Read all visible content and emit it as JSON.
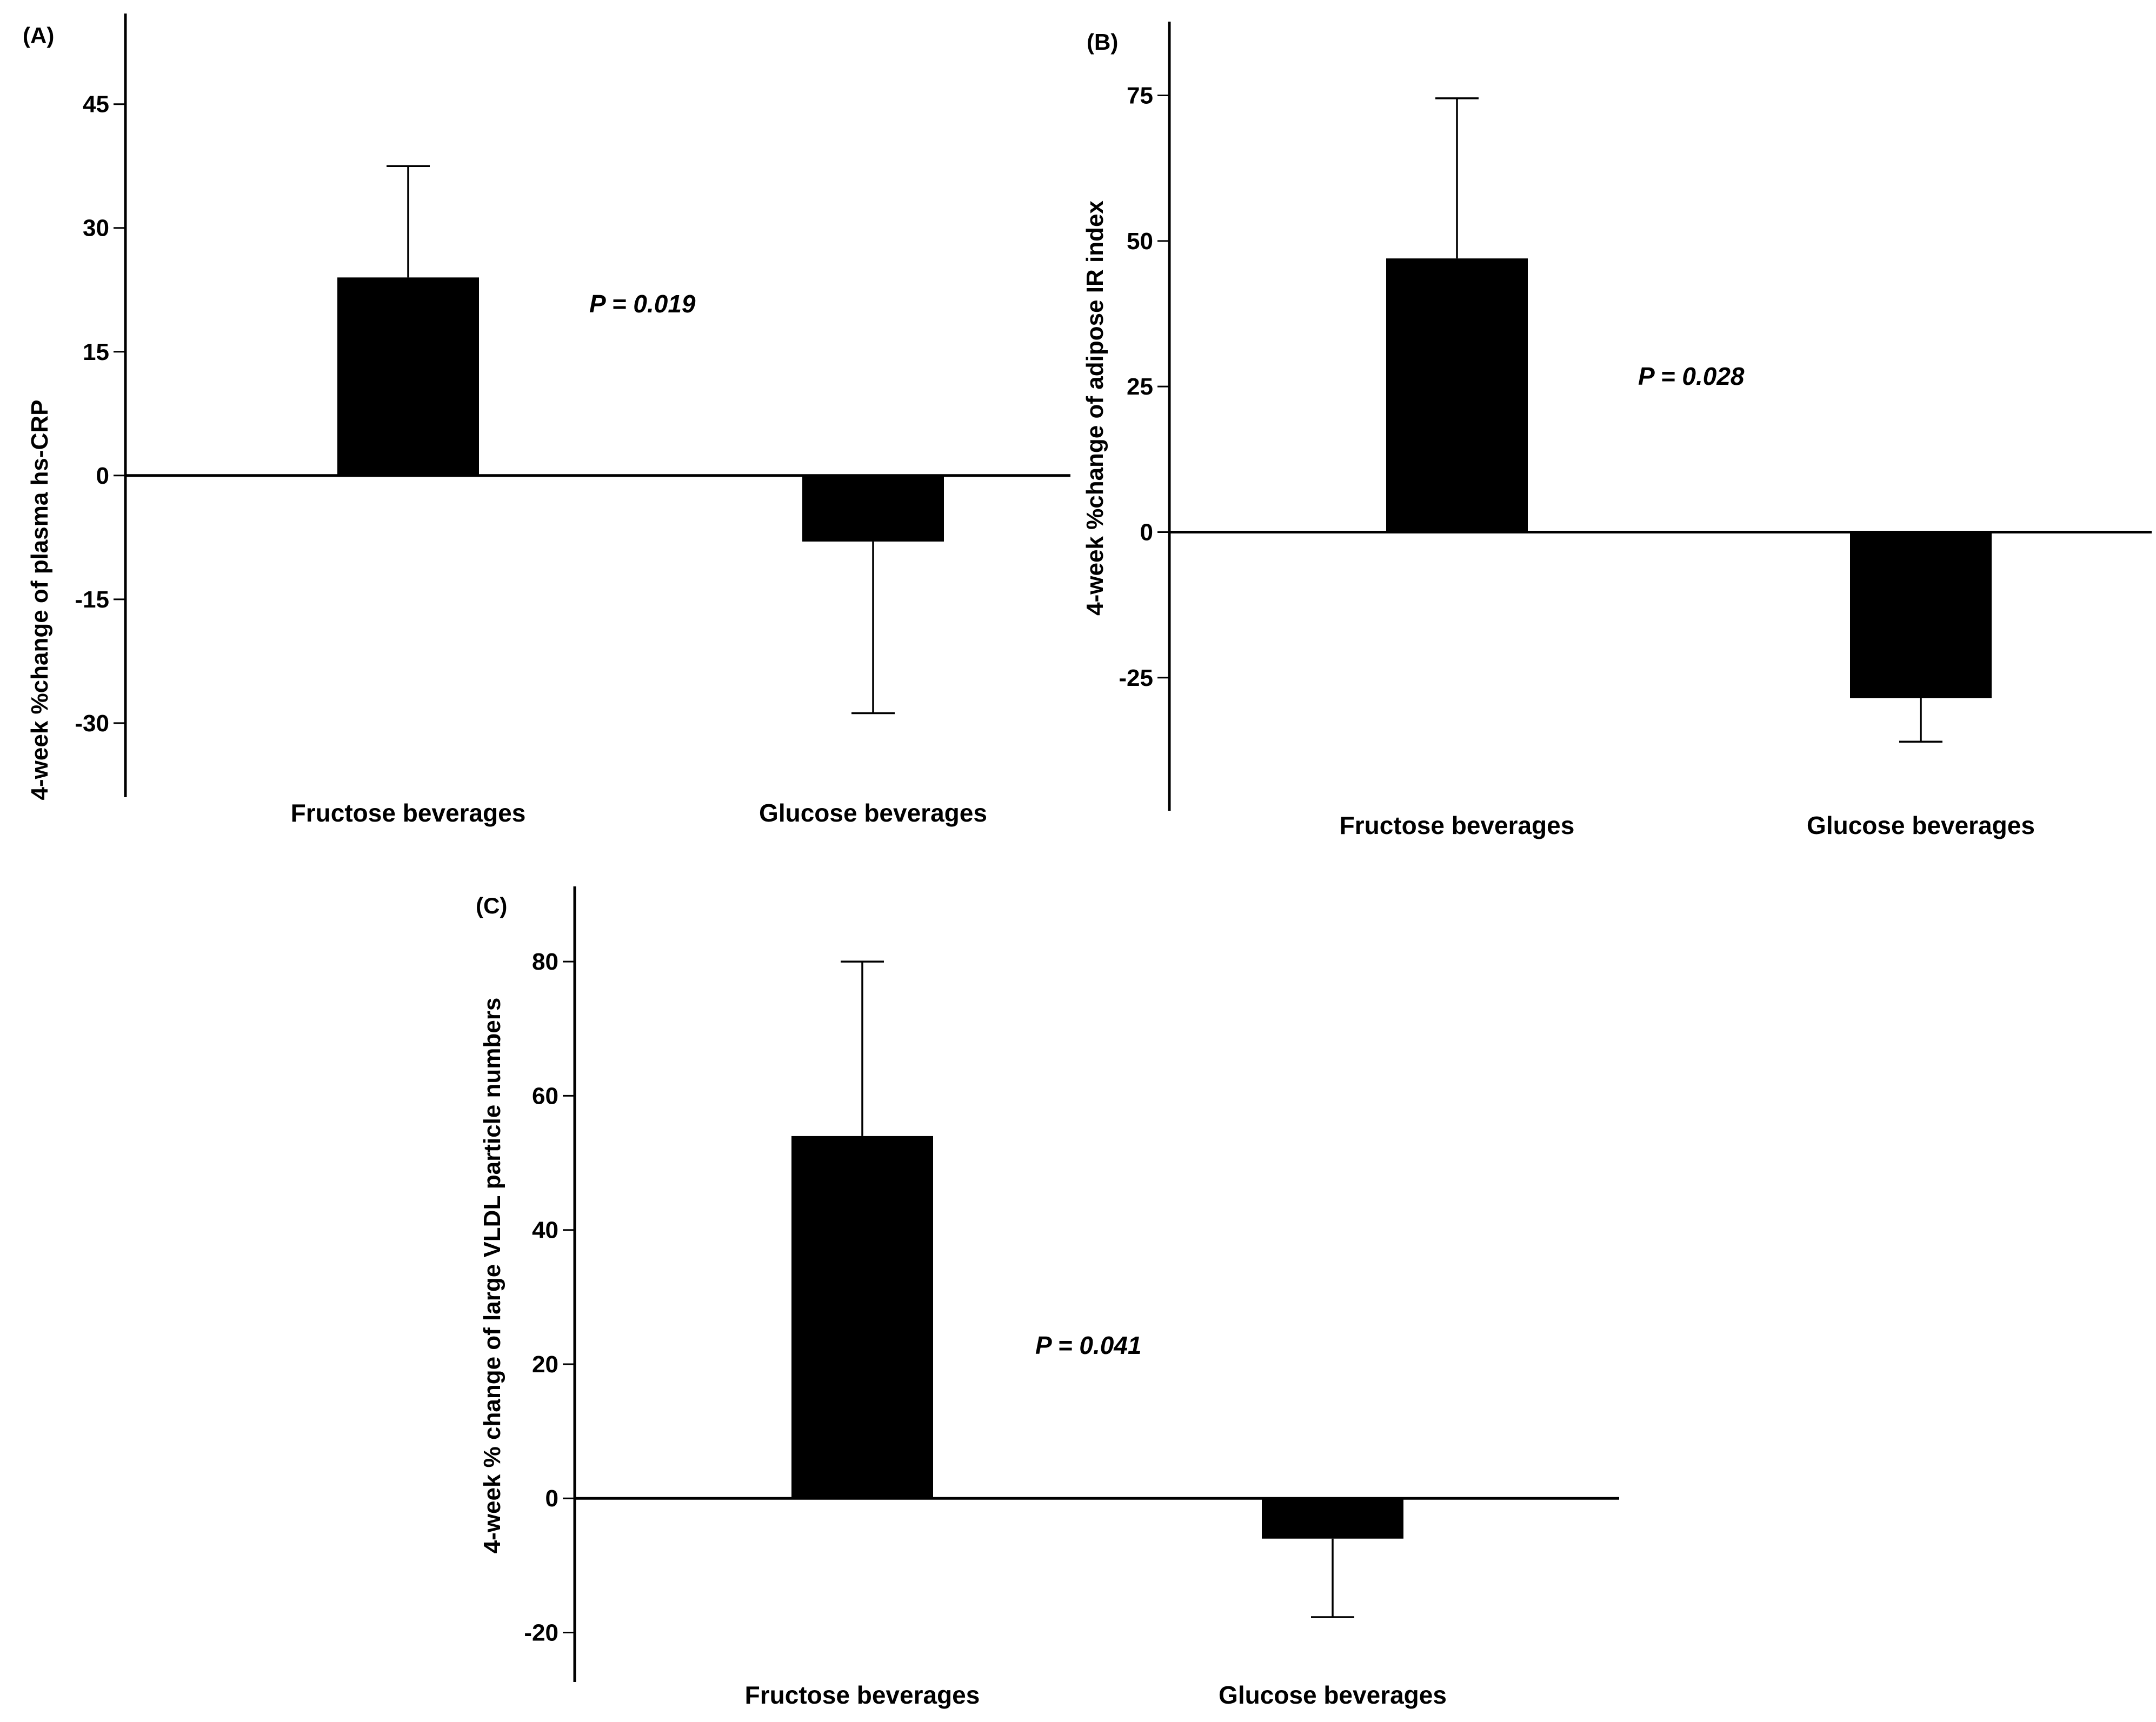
{
  "chart_data": [
    {
      "type": "bar",
      "panel_label": "(A)",
      "categories": [
        "Fructose beverages",
        "Glucose beverages"
      ],
      "values": [
        24,
        -8
      ],
      "error_bars": [
        {
          "upper": 37.5
        },
        {
          "lower": -28.8
        }
      ],
      "ylabel": "4-week %change of plasma hs-CRP",
      "ylim": [
        -38,
        55
      ],
      "yticks": [
        45,
        30,
        15,
        0,
        -15,
        -30
      ],
      "yticklabels": [
        "45",
        "30",
        "15",
        "0",
        "-15",
        "-30"
      ],
      "annotation": "P = 0.019",
      "title": "",
      "xlabel": ""
    },
    {
      "type": "bar",
      "panel_label": "(B)",
      "categories": [
        "Fructose beverages",
        "Glucose beverages"
      ],
      "values": [
        47,
        -28.5
      ],
      "error_bars": [
        {
          "upper": 74.5
        },
        {
          "lower": -36
        }
      ],
      "ylabel": "4-week %change of adipose IR index",
      "ylim": [
        -46,
        86
      ],
      "yticks": [
        75,
        50,
        25,
        0,
        -25
      ],
      "yticklabels": [
        "75",
        "50",
        "25",
        "0",
        "-25"
      ],
      "annotation": "P = 0.028",
      "title": "",
      "xlabel": ""
    },
    {
      "type": "bar",
      "panel_label": "(C)",
      "categories": [
        "Fructose beverages",
        "Glucose beverages"
      ],
      "values": [
        54,
        -6
      ],
      "error_bars": [
        {
          "upper": 80
        },
        {
          "lower": -17.7
        }
      ],
      "ylabel": "4-week % change of large VLDL particle numbers",
      "ylim": [
        -26,
        90
      ],
      "yticks": [
        80,
        60,
        40,
        20,
        0,
        -20
      ],
      "yticklabels": [
        "80",
        "60",
        "40",
        "20",
        "0",
        "-20"
      ],
      "annotation": "P = 0.041",
      "title": "",
      "xlabel": ""
    }
  ]
}
